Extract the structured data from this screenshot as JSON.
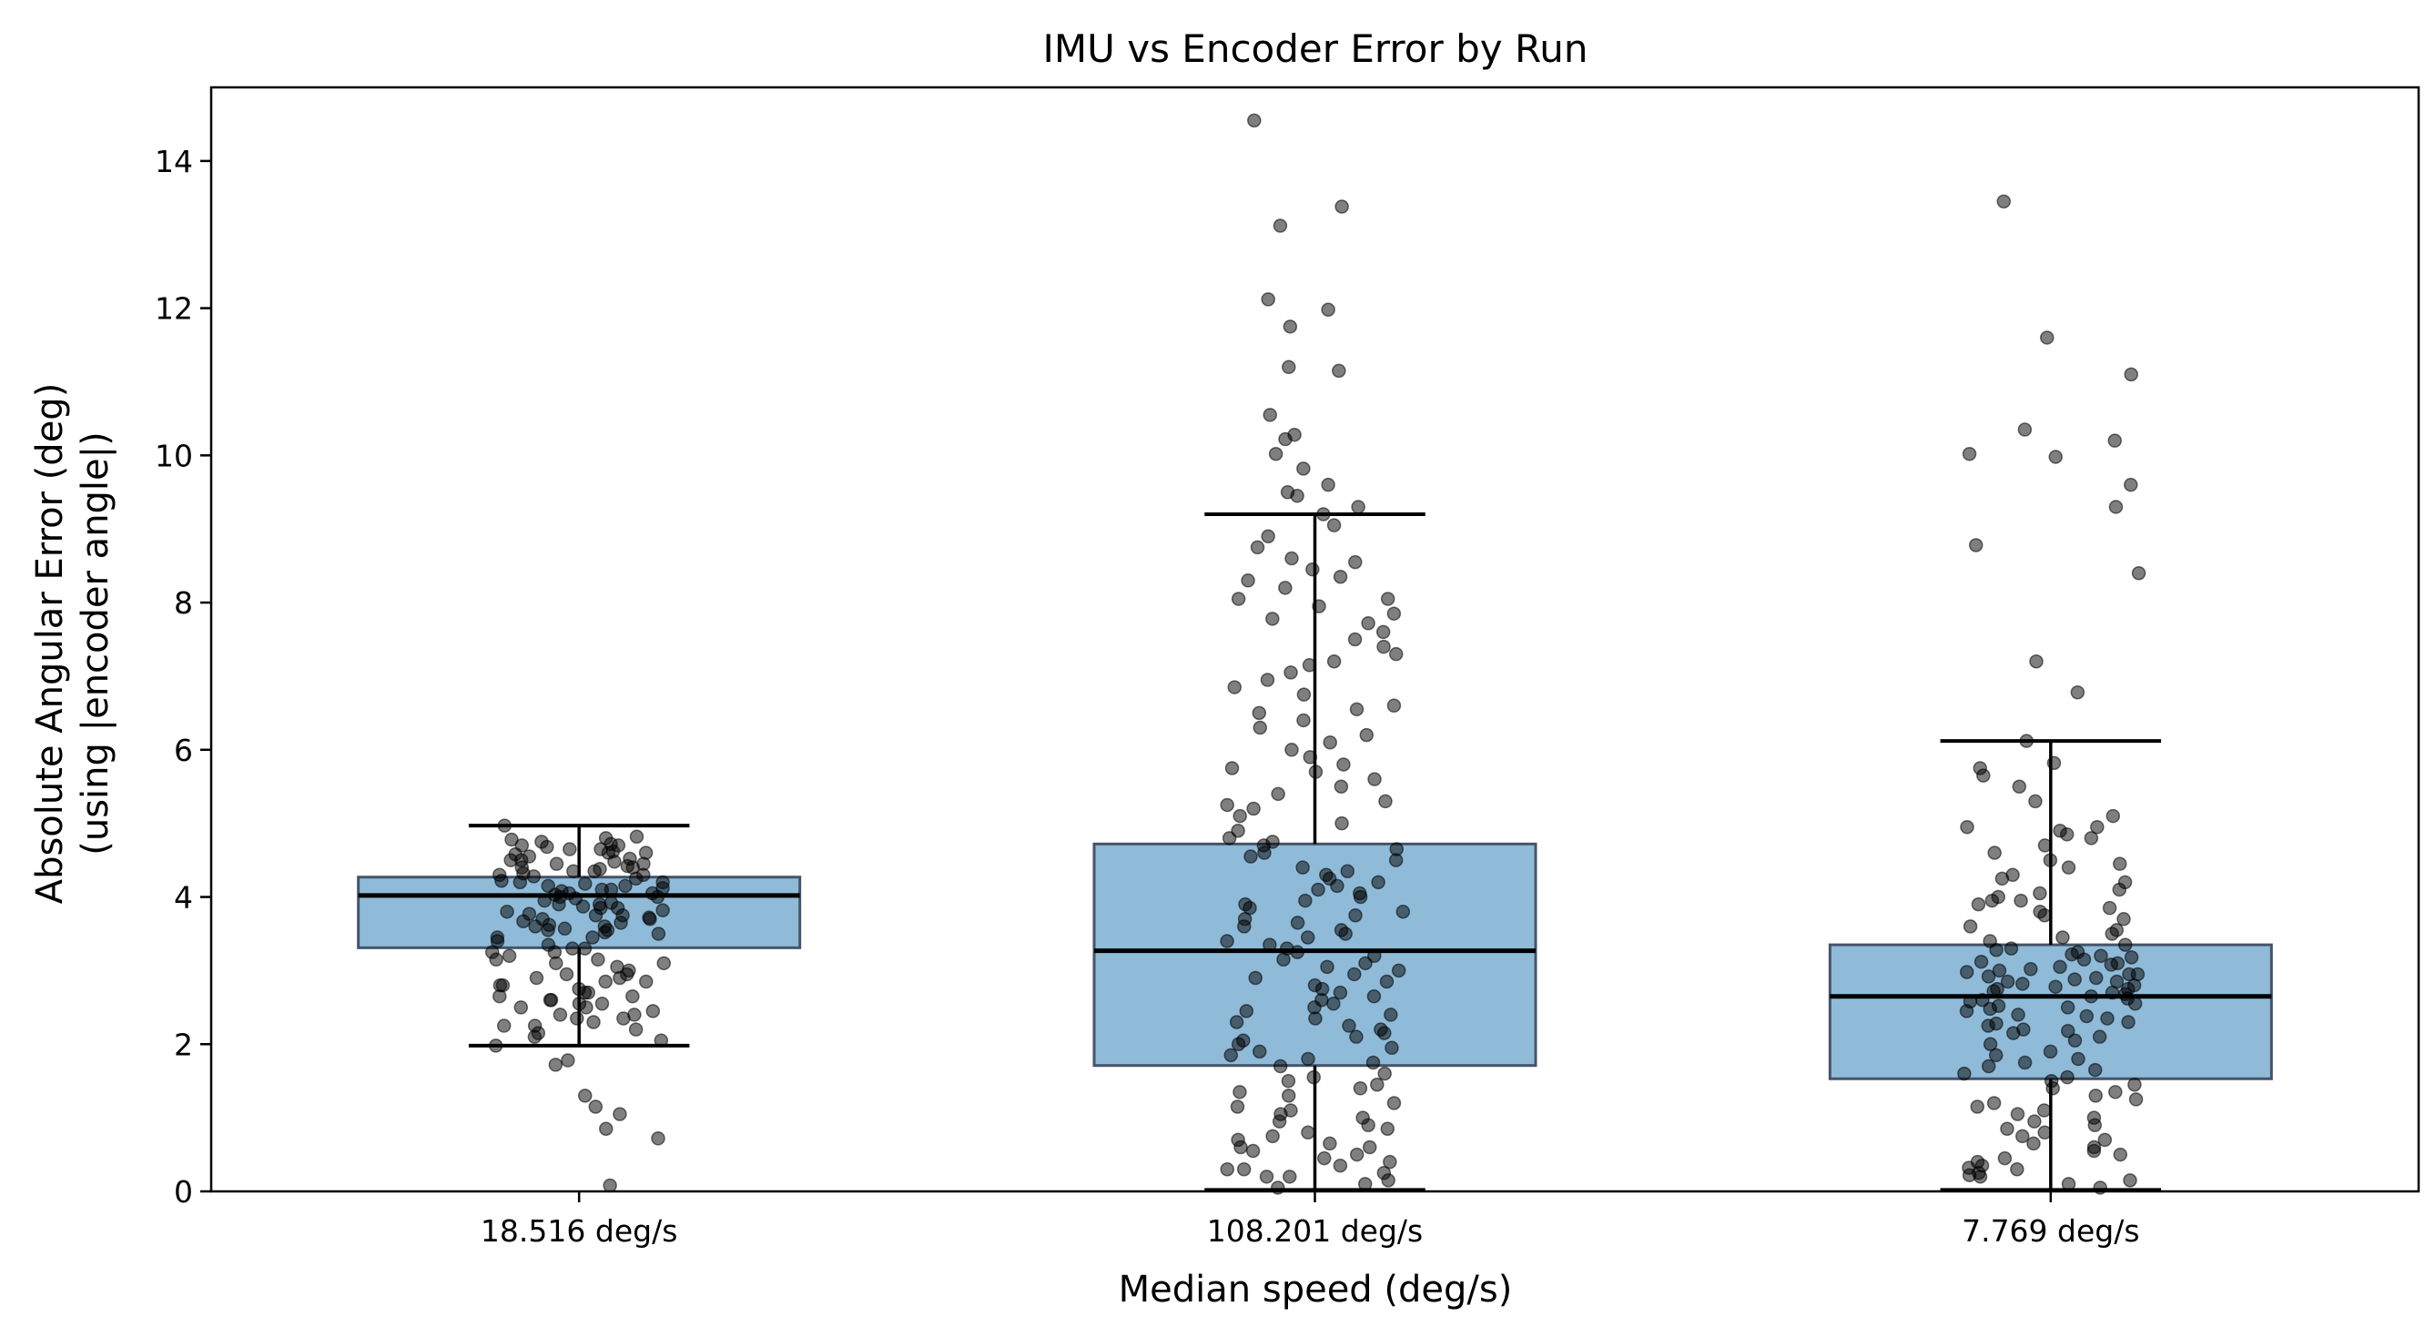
{
  "chart_data": {
    "type": "box",
    "title": "IMU vs Encoder Error by Run",
    "xlabel": "Median speed (deg/s)",
    "ylabel": [
      "Absolute Angular Error (deg)",
      "(using |encoder angle|)"
    ],
    "ylim": [
      0,
      15
    ],
    "yticks": [
      0,
      2,
      4,
      6,
      8,
      10,
      12,
      14
    ],
    "grid": false,
    "colors": {
      "box_fill": "#1f77b4",
      "box_fill_opacity": 0.5,
      "box_edge": "#44546a",
      "median": "#000000",
      "whisker": "#000000",
      "points": "#000000"
    },
    "categories": [
      "18.516 deg/s",
      "108.201 deg/s",
      "7.769 deg/s"
    ],
    "boxes": [
      {
        "whisker_low": 1.98,
        "q1": 3.31,
        "median": 4.02,
        "q3": 4.27,
        "whisker_high": 4.97
      },
      {
        "whisker_low": 0.02,
        "q1": 1.71,
        "median": 3.27,
        "q3": 4.72,
        "whisker_high": 9.2
      },
      {
        "whisker_low": 0.02,
        "q1": 1.53,
        "median": 2.65,
        "q3": 3.35,
        "whisker_high": 6.12
      }
    ],
    "points": [
      [
        4.97,
        4.82,
        4.8,
        4.78,
        4.75,
        4.72,
        4.7,
        4.68,
        4.65,
        4.62,
        4.6,
        4.58,
        4.55,
        4.52,
        4.5,
        4.48,
        4.45,
        4.42,
        4.4,
        4.38,
        4.35,
        4.32,
        4.3,
        4.28,
        4.25,
        4.22,
        4.2,
        4.18,
        4.15,
        4.12,
        4.1,
        4.08,
        4.05,
        4.03,
        4.0,
        3.98,
        3.95,
        3.92,
        3.9,
        3.87,
        3.85,
        3.82,
        3.8,
        3.77,
        3.75,
        3.72,
        3.7,
        3.67,
        3.65,
        3.62,
        3.6,
        3.57,
        3.55,
        3.52,
        3.5,
        3.45,
        3.4,
        3.35,
        3.3,
        3.25,
        3.2,
        3.15,
        3.1,
        3.05,
        3.0,
        2.95,
        2.9,
        2.85,
        2.8,
        2.75,
        2.7,
        2.65,
        2.6,
        2.55,
        2.5,
        2.45,
        2.4,
        2.35,
        2.3,
        2.25,
        2.2,
        2.15,
        2.1,
        2.05,
        1.98,
        1.78,
        1.72,
        1.3,
        1.15,
        1.05,
        0.85,
        0.72,
        0.08,
        4.6,
        4.4,
        4.2,
        4.1,
        3.9,
        3.7,
        2.9,
        2.7,
        2.5,
        3.1,
        3.3,
        4.3,
        4.5,
        4.0,
        3.6,
        2.8,
        2.6,
        2.4,
        4.7,
        4.45,
        4.15,
        3.85,
        3.55,
        3.25,
        2.95,
        2.65,
        2.35,
        4.65,
        4.35,
        4.05,
        3.75,
        3.45,
        3.15,
        2.85,
        2.55,
        2.25
      ],
      [
        14.55,
        13.38,
        13.12,
        12.12,
        11.98,
        11.75,
        11.2,
        11.15,
        10.55,
        10.28,
        10.22,
        10.02,
        9.82,
        9.6,
        9.5,
        9.45,
        9.3,
        9.2,
        9.05,
        8.9,
        8.75,
        8.6,
        8.55,
        8.45,
        8.35,
        8.3,
        8.2,
        8.05,
        7.95,
        7.85,
        7.78,
        7.72,
        7.6,
        7.5,
        7.4,
        7.3,
        7.2,
        7.05,
        6.95,
        6.85,
        6.75,
        6.6,
        6.5,
        6.4,
        6.3,
        6.2,
        6.1,
        6.0,
        5.9,
        5.8,
        5.7,
        5.6,
        5.5,
        5.4,
        5.3,
        5.2,
        5.1,
        5.0,
        4.9,
        4.8,
        4.7,
        4.6,
        4.5,
        4.4,
        4.3,
        4.2,
        4.1,
        4.0,
        3.9,
        3.8,
        3.7,
        3.6,
        3.5,
        3.4,
        3.3,
        3.2,
        3.1,
        3.0,
        2.9,
        2.8,
        2.7,
        2.6,
        2.5,
        2.4,
        2.3,
        2.2,
        2.1,
        2.0,
        1.9,
        1.8,
        1.7,
        1.6,
        1.5,
        1.4,
        1.3,
        1.2,
        1.1,
        1.0,
        0.9,
        0.8,
        0.7,
        0.6,
        0.5,
        0.4,
        0.3,
        0.2,
        0.1,
        0.05,
        4.55,
        4.35,
        4.15,
        3.95,
        3.75,
        3.55,
        3.35,
        3.15,
        2.95,
        2.75,
        2.55,
        2.35,
        2.15,
        1.95,
        1.75,
        1.55,
        1.35,
        1.15,
        0.95,
        0.75,
        0.55,
        0.35,
        0.15,
        4.65,
        4.25,
        3.85,
        3.45,
        3.05,
        2.65,
        2.25,
        1.85,
        1.45,
        1.05,
        0.65,
        0.25,
        5.75,
        5.25,
        4.75,
        6.55,
        7.15,
        8.05,
        0.85,
        0.45,
        0.3,
        0.6,
        0.2,
        4.05,
        3.65,
        3.25,
        2.85,
        2.45,
        2.05
      ],
      [
        13.45,
        11.6,
        11.1,
        10.35,
        10.2,
        10.02,
        9.98,
        9.6,
        9.3,
        8.78,
        8.4,
        7.2,
        6.78,
        6.12,
        5.82,
        5.75,
        5.65,
        5.5,
        5.3,
        5.1,
        4.95,
        4.9,
        4.85,
        4.8,
        4.7,
        4.6,
        4.5,
        4.4,
        4.3,
        4.2,
        4.1,
        4.0,
        3.95,
        3.9,
        3.85,
        3.8,
        3.7,
        3.6,
        3.5,
        3.45,
        3.4,
        3.35,
        3.3,
        3.25,
        3.2,
        3.15,
        3.1,
        3.05,
        3.0,
        2.95,
        2.9,
        2.85,
        2.8,
        2.75,
        2.7,
        2.65,
        2.6,
        2.55,
        2.5,
        2.45,
        2.4,
        2.35,
        2.3,
        2.25,
        2.2,
        2.15,
        2.1,
        2.05,
        2.0,
        1.9,
        1.8,
        1.7,
        1.6,
        1.5,
        1.4,
        1.3,
        1.2,
        1.1,
        1.0,
        0.9,
        0.8,
        0.7,
        0.6,
        0.5,
        0.4,
        0.3,
        0.2,
        0.1,
        0.05,
        3.28,
        3.18,
        3.08,
        2.98,
        2.88,
        2.78,
        2.68,
        2.58,
        2.48,
        2.38,
        2.28,
        2.18,
        3.22,
        3.12,
        3.02,
        2.92,
        2.82,
        2.72,
        2.62,
        2.52,
        4.95,
        4.05,
        3.95,
        1.55,
        1.45,
        1.35,
        1.25,
        1.15,
        1.05,
        0.95,
        0.85,
        0.75,
        0.65,
        0.55,
        0.45,
        0.35,
        0.25,
        0.15,
        4.45,
        4.25,
        3.75,
        3.55,
        2.95,
        2.85,
        2.75,
        1.85,
        1.75,
        1.65,
        0.22,
        0.32
      ]
    ]
  }
}
